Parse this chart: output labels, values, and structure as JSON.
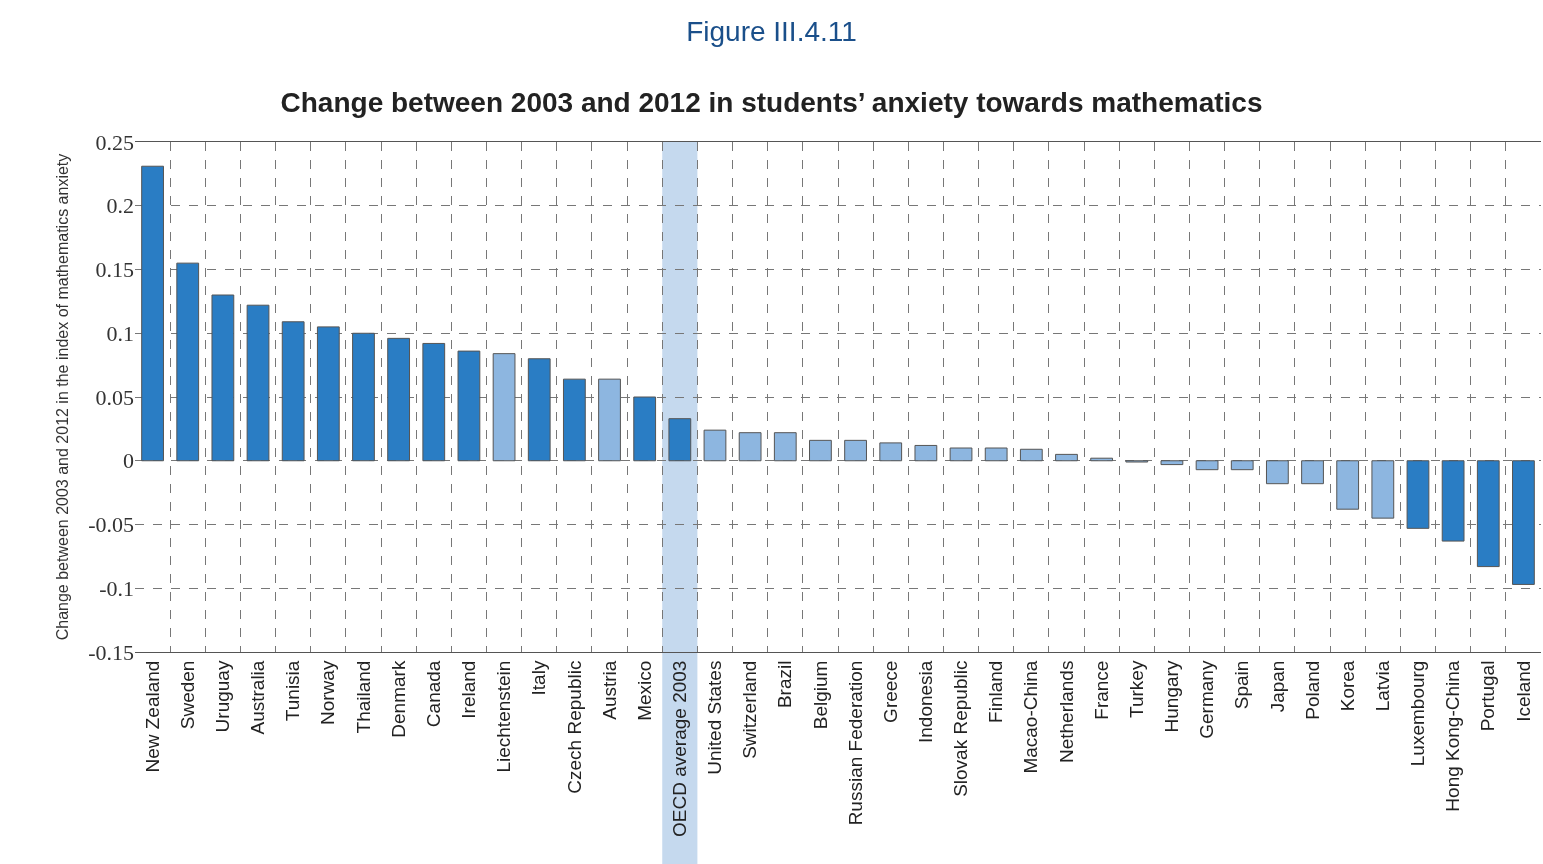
{
  "chart_data": {
    "type": "bar",
    "title": "Figure III.4.11",
    "subtitle": "Change between 2003 and 2012 in students’ anxiety towards mathematics",
    "ylabel": "Change between 2003 and 2012 in the index of mathematics anxiety",
    "categories": [
      "New Zealand",
      "Sweden",
      "Uruguay",
      "Australia",
      "Tunisia",
      "Norway",
      "Thailand",
      "Denmark",
      "Canada",
      "Ireland",
      "Liechtenstein",
      "Italy",
      "Czech Republic",
      "Austria",
      "Mexico",
      "OECD average 2003",
      "United States",
      "Switzerland",
      "Brazil",
      "Belgium",
      "Russian Federation",
      "Greece",
      "Indonesia",
      "Slovak Republic",
      "Finland",
      "Macao-China",
      "Netherlands",
      "France",
      "Turkey",
      "Hungary",
      "Germany",
      "Spain",
      "Japan",
      "Poland",
      "Korea",
      "Latvia",
      "Luxembourg",
      "Hong Kong-China",
      "Portugal",
      "Iceland"
    ],
    "values": [
      0.231,
      0.155,
      0.13,
      0.122,
      0.109,
      0.105,
      0.1,
      0.096,
      0.092,
      0.086,
      0.084,
      0.08,
      0.064,
      0.064,
      0.05,
      0.033,
      0.024,
      0.022,
      0.022,
      0.016,
      0.016,
      0.014,
      0.012,
      0.01,
      0.01,
      0.009,
      0.005,
      0.002,
      -0.001,
      -0.003,
      -0.007,
      -0.007,
      -0.018,
      -0.018,
      -0.038,
      -0.045,
      -0.053,
      -0.063,
      -0.083,
      -0.097
    ],
    "colors": [
      "#2a7dc4",
      "#2a7dc4",
      "#2a7dc4",
      "#2a7dc4",
      "#2a7dc4",
      "#2a7dc4",
      "#2a7dc4",
      "#2a7dc4",
      "#2a7dc4",
      "#2a7dc4",
      "#8db6e0",
      "#2a7dc4",
      "#2a7dc4",
      "#8db6e0",
      "#2a7dc4",
      "#2a7dc4",
      "#8db6e0",
      "#8db6e0",
      "#8db6e0",
      "#8db6e0",
      "#8db6e0",
      "#8db6e0",
      "#8db6e0",
      "#8db6e0",
      "#8db6e0",
      "#8db6e0",
      "#8db6e0",
      "#8db6e0",
      "#8db6e0",
      "#8db6e0",
      "#8db6e0",
      "#8db6e0",
      "#8db6e0",
      "#8db6e0",
      "#8db6e0",
      "#8db6e0",
      "#2a7dc4",
      "#2a7dc4",
      "#2a7dc4",
      "#2a7dc4"
    ],
    "ylim": [
      -0.15,
      0.25
    ],
    "yticks": [
      -0.15,
      -0.1,
      -0.05,
      0,
      0.05,
      0.1,
      0.15,
      0.2,
      0.25
    ],
    "grid": true,
    "bands": [
      {
        "axis": "x",
        "from": "OECD average 2003",
        "to": "OECD average 2003",
        "color": "#c5d9ee"
      }
    ]
  }
}
